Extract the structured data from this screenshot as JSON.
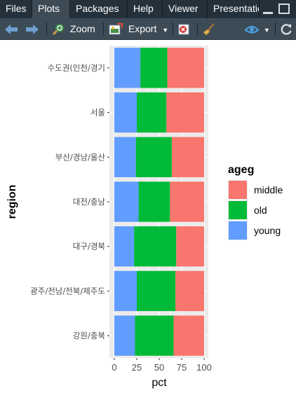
{
  "tabs": [
    {
      "label": "Files",
      "active": false
    },
    {
      "label": "Plots",
      "active": true
    },
    {
      "label": "Packages",
      "active": false
    },
    {
      "label": "Help",
      "active": false
    },
    {
      "label": "Viewer",
      "active": false
    },
    {
      "label": "Presentation",
      "active": false
    }
  ],
  "toolbar": {
    "zoom_label": "Zoom",
    "export_label": "Export",
    "icons": [
      "back-arrow-icon",
      "forward-arrow-icon",
      "zoom-icon",
      "export-icon",
      "remove-plot-icon",
      "broom-icon",
      "publish-icon",
      "refresh-icon"
    ]
  },
  "colors": {
    "middle": "#F8766D",
    "old": "#00BA38",
    "young": "#619CFF",
    "panel_bg": "#EBEBEB"
  },
  "chart_data": {
    "type": "bar",
    "orientation": "horizontal",
    "stacked": true,
    "xlabel": "pct",
    "ylabel": "region",
    "xlim": [
      0,
      100
    ],
    "xticks": [
      0,
      25,
      50,
      75,
      100
    ],
    "categories": [
      "수도권(인천/경기",
      "서울",
      "부산/경남/울산",
      "대전/충남",
      "대구/경북",
      "광주/전남/전북/제주도",
      "강원/충북"
    ],
    "series": [
      {
        "name": "young",
        "values": [
          29,
          25,
          24,
          27,
          22,
          25,
          23
        ]
      },
      {
        "name": "old",
        "values": [
          30,
          33,
          40,
          35,
          47,
          43,
          43
        ]
      },
      {
        "name": "middle",
        "values": [
          41,
          42,
          36,
          38,
          31,
          32,
          34
        ]
      }
    ],
    "legend": {
      "title": "ageg",
      "position": "right",
      "entries": [
        "middle",
        "old",
        "young"
      ]
    },
    "grid": true
  }
}
